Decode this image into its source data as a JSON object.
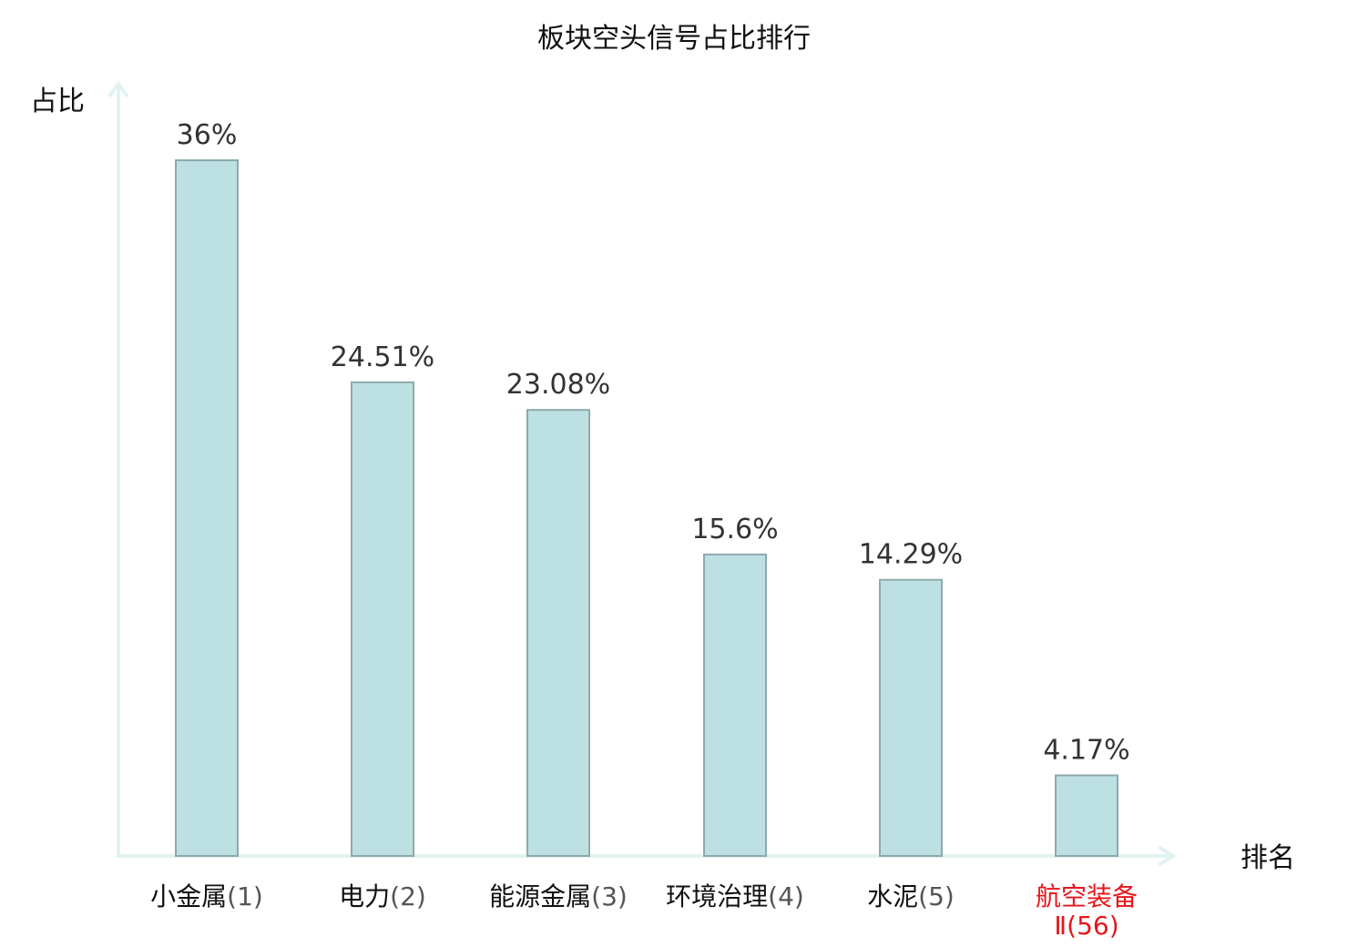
{
  "chart_data": {
    "type": "bar",
    "title": "板块空头信号占比排行",
    "ylabel": "占比",
    "xlabel": "排名",
    "ylim": [
      0,
      40
    ],
    "grid": false,
    "categories": [
      {
        "name": "小金属",
        "rank": "(1)",
        "highlight": false
      },
      {
        "name": "电力",
        "rank": "(2)",
        "highlight": false
      },
      {
        "name": "能源金属",
        "rank": "(3)",
        "highlight": false
      },
      {
        "name": "环境治理",
        "rank": "(4)",
        "highlight": false
      },
      {
        "name": "水泥",
        "rank": "(5)",
        "highlight": false
      },
      {
        "name": "航空装备",
        "name2": "Ⅱ",
        "rank": "(56)",
        "highlight": true
      }
    ],
    "values": [
      36,
      24.51,
      23.08,
      15.6,
      14.29,
      4.17
    ],
    "value_labels": [
      "36%",
      "24.51%",
      "23.08%",
      "15.6%",
      "14.29%",
      "4.17%"
    ]
  },
  "colors": {
    "bar_fill": "#bde0e3",
    "bar_stroke": "#8fa9ab",
    "axis": "#e0f3f1",
    "label": "#111111",
    "rank": "#555555",
    "highlight": "#e6161b"
  }
}
